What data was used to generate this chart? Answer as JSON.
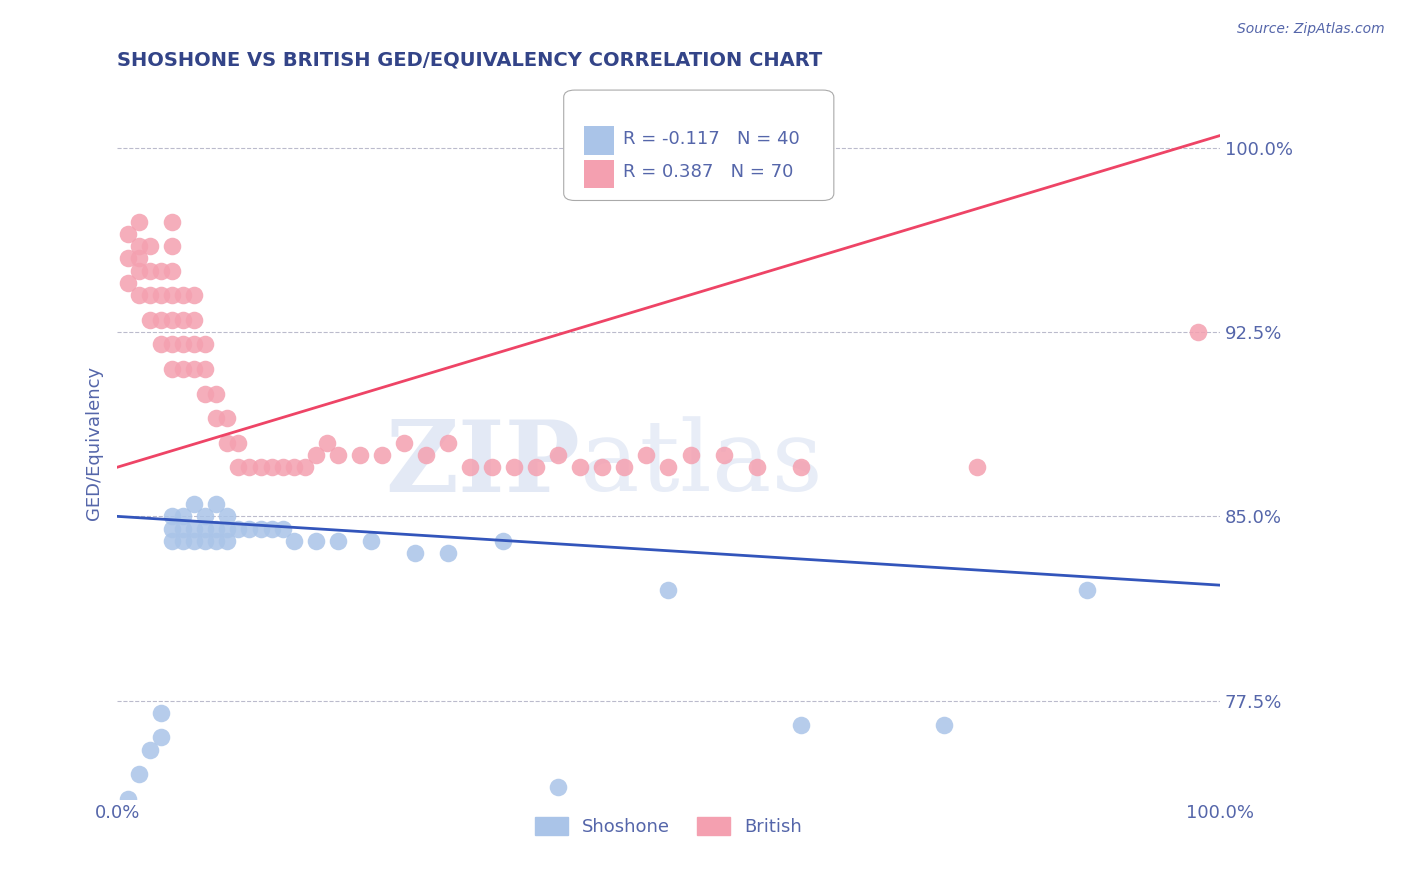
{
  "title": "SHOSHONE VS BRITISH GED/EQUIVALENCY CORRELATION CHART",
  "source_text": "Source: ZipAtlas.com",
  "ylabel": "GED/Equivalency",
  "xlim": [
    0.0,
    1.0
  ],
  "ylim": [
    0.735,
    1.025
  ],
  "yticks": [
    0.775,
    0.85,
    0.925,
    1.0
  ],
  "ytick_labels": [
    "77.5%",
    "85.0%",
    "92.5%",
    "100.0%"
  ],
  "xticks": [
    0.0,
    1.0
  ],
  "xtick_labels": [
    "0.0%",
    "100.0%"
  ],
  "shoshone_color": "#aac4e8",
  "british_color": "#f4a0b0",
  "shoshone_line_color": "#3355bb",
  "british_line_color": "#ee4466",
  "legend_R_shoshone": "R = -0.117",
  "legend_N_shoshone": "N = 40",
  "legend_R_british": "R = 0.387",
  "legend_N_british": "N = 70",
  "watermark": "ZIPatlas",
  "background_color": "#ffffff",
  "grid_color": "#bbbbcc",
  "title_color": "#334488",
  "axis_color": "#5566aa",
  "shoshone_points_x": [
    0.01,
    0.02,
    0.03,
    0.04,
    0.04,
    0.05,
    0.05,
    0.05,
    0.06,
    0.06,
    0.06,
    0.07,
    0.07,
    0.07,
    0.08,
    0.08,
    0.08,
    0.09,
    0.09,
    0.09,
    0.1,
    0.1,
    0.1,
    0.11,
    0.12,
    0.13,
    0.14,
    0.15,
    0.16,
    0.18,
    0.2,
    0.23,
    0.27,
    0.3,
    0.35,
    0.4,
    0.5,
    0.62,
    0.75,
    0.88
  ],
  "shoshone_points_y": [
    0.735,
    0.745,
    0.755,
    0.76,
    0.77,
    0.84,
    0.845,
    0.85,
    0.84,
    0.845,
    0.85,
    0.84,
    0.845,
    0.855,
    0.84,
    0.845,
    0.85,
    0.84,
    0.845,
    0.855,
    0.84,
    0.845,
    0.85,
    0.845,
    0.845,
    0.845,
    0.845,
    0.845,
    0.84,
    0.84,
    0.84,
    0.84,
    0.835,
    0.835,
    0.84,
    0.74,
    0.82,
    0.765,
    0.765,
    0.82
  ],
  "british_points_x": [
    0.01,
    0.01,
    0.01,
    0.02,
    0.02,
    0.02,
    0.02,
    0.02,
    0.03,
    0.03,
    0.03,
    0.03,
    0.04,
    0.04,
    0.04,
    0.04,
    0.05,
    0.05,
    0.05,
    0.05,
    0.05,
    0.05,
    0.05,
    0.06,
    0.06,
    0.06,
    0.06,
    0.07,
    0.07,
    0.07,
    0.07,
    0.08,
    0.08,
    0.08,
    0.09,
    0.09,
    0.1,
    0.1,
    0.11,
    0.11,
    0.12,
    0.13,
    0.14,
    0.15,
    0.16,
    0.17,
    0.18,
    0.19,
    0.2,
    0.22,
    0.24,
    0.26,
    0.28,
    0.3,
    0.32,
    0.34,
    0.36,
    0.38,
    0.4,
    0.42,
    0.44,
    0.46,
    0.48,
    0.5,
    0.52,
    0.55,
    0.58,
    0.62,
    0.78,
    0.98
  ],
  "british_points_y": [
    0.945,
    0.955,
    0.965,
    0.94,
    0.95,
    0.955,
    0.96,
    0.97,
    0.93,
    0.94,
    0.95,
    0.96,
    0.92,
    0.93,
    0.94,
    0.95,
    0.91,
    0.92,
    0.93,
    0.94,
    0.95,
    0.96,
    0.97,
    0.91,
    0.92,
    0.93,
    0.94,
    0.91,
    0.92,
    0.93,
    0.94,
    0.9,
    0.91,
    0.92,
    0.89,
    0.9,
    0.88,
    0.89,
    0.87,
    0.88,
    0.87,
    0.87,
    0.87,
    0.87,
    0.87,
    0.87,
    0.875,
    0.88,
    0.875,
    0.875,
    0.875,
    0.88,
    0.875,
    0.88,
    0.87,
    0.87,
    0.87,
    0.87,
    0.875,
    0.87,
    0.87,
    0.87,
    0.875,
    0.87,
    0.875,
    0.875,
    0.87,
    0.87,
    0.87,
    0.925
  ]
}
